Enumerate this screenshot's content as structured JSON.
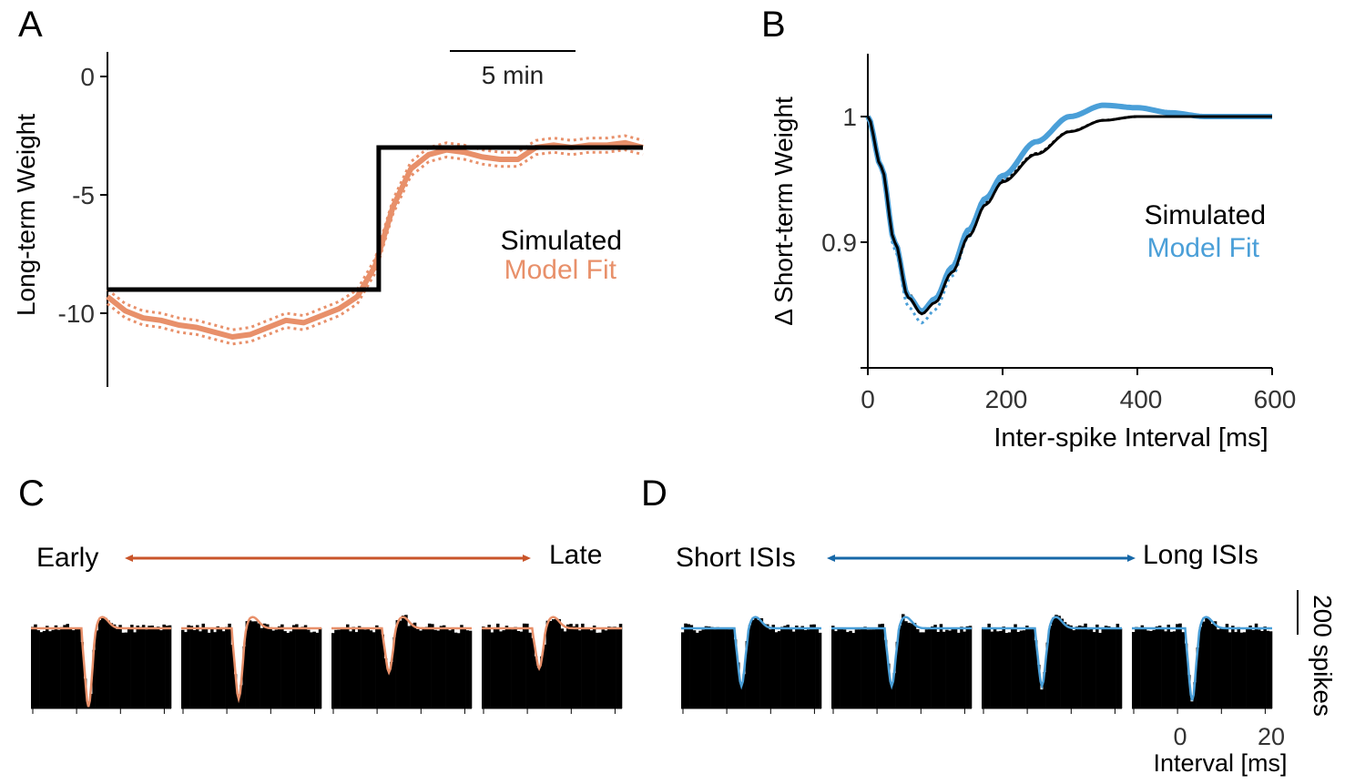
{
  "colors": {
    "black": "#000000",
    "orange": "#e8906a",
    "orange_dark": "#c9552a",
    "blue": "#4a9fd8",
    "blue_dark": "#1768a8"
  },
  "chart_data": [
    {
      "panel": "A",
      "type": "line",
      "ylabel": "Long-term Weight",
      "ylim": [
        -13,
        1
      ],
      "yticks": [
        0,
        -5,
        -10
      ],
      "scale_bar": "5 min",
      "legend": [
        "Simulated",
        "Model Fit"
      ],
      "legend_placement": "center-right",
      "series": [
        {
          "name": "Simulated",
          "x": [
            0,
            15.2,
            15.2,
            30
          ],
          "y": [
            -9,
            -9,
            -3,
            -3
          ]
        },
        {
          "name": "Model Fit",
          "x": [
            0,
            1,
            2,
            3,
            4,
            5,
            6,
            7,
            8,
            9,
            10,
            11,
            12,
            13,
            14,
            15,
            16,
            17,
            18,
            19,
            20,
            21,
            22,
            23,
            24,
            25,
            26,
            27,
            28,
            29,
            30
          ],
          "y": [
            -9.3,
            -9.9,
            -10.2,
            -10.3,
            -10.5,
            -10.6,
            -10.8,
            -11.0,
            -10.9,
            -10.6,
            -10.3,
            -10.4,
            -10.1,
            -9.8,
            -9.3,
            -8.0,
            -5.5,
            -3.9,
            -3.3,
            -3.1,
            -3.2,
            -3.4,
            -3.5,
            -3.5,
            -3.0,
            -2.9,
            -3.0,
            -2.9,
            -2.9,
            -2.8,
            -3.0
          ]
        }
      ]
    },
    {
      "panel": "B",
      "type": "line",
      "xlabel": "Inter-spike Interval [ms]",
      "ylabel": "Δ Short-term Weight",
      "xlim": [
        0,
        600
      ],
      "ylim": [
        0.8,
        1.05
      ],
      "xticks": [
        0,
        200,
        400,
        600
      ],
      "yticks": [
        1,
        0.9
      ],
      "legend": [
        "Simulated",
        "Model Fit"
      ],
      "legend_placement": "center-right",
      "series": [
        {
          "name": "Simulated",
          "x": [
            0,
            20,
            40,
            60,
            80,
            100,
            125,
            150,
            175,
            200,
            250,
            300,
            350,
            400,
            450,
            500,
            600
          ],
          "y": [
            1.0,
            0.96,
            0.9,
            0.856,
            0.843,
            0.852,
            0.876,
            0.905,
            0.93,
            0.948,
            0.97,
            0.988,
            0.997,
            1.0,
            1.0,
            1.0,
            1.0
          ]
        },
        {
          "name": "Model Fit",
          "x": [
            0,
            20,
            40,
            60,
            80,
            100,
            125,
            150,
            175,
            200,
            250,
            300,
            350,
            400,
            450,
            500,
            600
          ],
          "y": [
            1.0,
            0.96,
            0.9,
            0.857,
            0.845,
            0.855,
            0.88,
            0.91,
            0.935,
            0.953,
            0.98,
            1.0,
            1.009,
            1.007,
            1.003,
            1.0,
            1.0
          ]
        }
      ]
    },
    {
      "panel": "C",
      "type": "bar",
      "arrow_left": "Early",
      "arrow_right": "Late",
      "n_histograms": 4,
      "dip_depth": [
        0.98,
        0.88,
        0.55,
        0.5
      ]
    },
    {
      "panel": "D",
      "type": "bar",
      "arrow_left": "Short ISIs",
      "arrow_right": "Long ISIs",
      "n_histograms": 4,
      "dip_depth": [
        0.72,
        0.72,
        0.72,
        0.9
      ],
      "xlabel": "Interval [ms]",
      "xticks": [
        0,
        20
      ],
      "scale_bar": "200 spikes"
    }
  ],
  "panel_labels": [
    "A",
    "B",
    "C",
    "D"
  ]
}
